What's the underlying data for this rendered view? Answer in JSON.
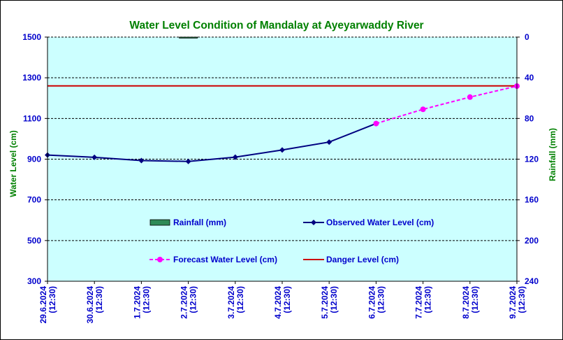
{
  "chart_data": {
    "type": "line",
    "title": "Water Level Condition of Mandalay at Ayeyarwaddy River",
    "ylabel": "Water Level (cm)",
    "y2label": "Rainfall (mm)",
    "ylim": [
      300,
      1500
    ],
    "yticks": [
      "300",
      "500",
      "700",
      "900",
      "1100",
      "1300",
      "1500"
    ],
    "y2lim": [
      240,
      0
    ],
    "y2ticks": [
      "0",
      "40",
      "80",
      "120",
      "160",
      "200",
      "240"
    ],
    "categories": [
      "29.6.2024",
      "30.6.2024",
      "1.7.2024",
      "2.7.2024",
      "3.7.2024",
      "4.7.2024",
      "5.7.2024",
      "6.7.2024",
      "7.7.2024",
      "8.7.2024",
      "9.7.2024"
    ],
    "time_label": "(12:30)",
    "grid": true,
    "series": [
      {
        "name": "Rainfall (mm)",
        "type": "bar",
        "axis": "right",
        "color": "#2e8b57",
        "values": [
          0,
          0,
          0,
          0.5,
          0,
          0,
          0,
          0,
          0,
          0,
          0
        ]
      },
      {
        "name": "Observed Water Level (cm)",
        "type": "line",
        "color": "#000080",
        "values": [
          920,
          909,
          893,
          889,
          910,
          945,
          984,
          1075,
          null,
          null,
          null
        ]
      },
      {
        "name": "Forecast Water Level (cm)",
        "type": "line",
        "color": "#ff00ff",
        "dashed": true,
        "values": [
          null,
          null,
          null,
          null,
          null,
          null,
          null,
          1075,
          1145,
          1205,
          1259
        ]
      },
      {
        "name": "Danger Level (cm)",
        "type": "hline",
        "color": "#cc0000",
        "value": 1260
      }
    ],
    "colors": {
      "title": "#008000",
      "axis_text": "#0000cc",
      "plot_bg": "#ccffff",
      "rainfall_axis_label": "#008000",
      "water_axis_label": "#008000"
    }
  }
}
